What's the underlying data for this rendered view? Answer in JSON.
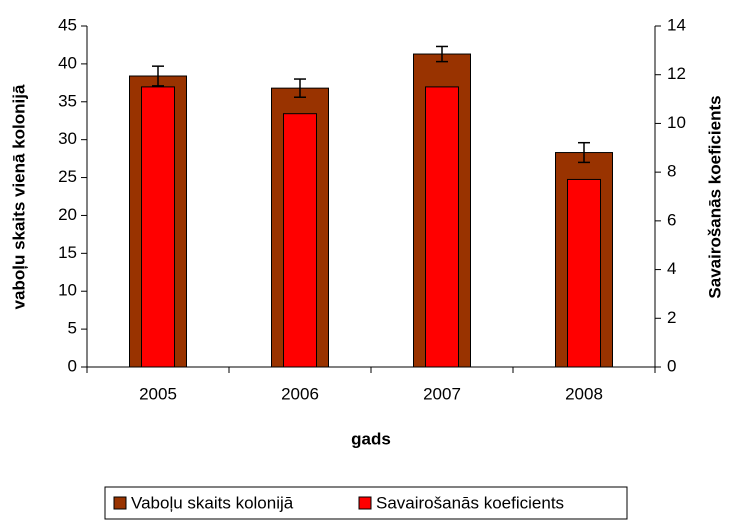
{
  "chart_data": {
    "type": "bar",
    "categories": [
      "2005",
      "2006",
      "2007",
      "2008"
    ],
    "xlabel": "gads",
    "ylabel": "vaboļu skaits vienā kolonijā",
    "y2label": "Savairošanās koeficients",
    "ylim": [
      0,
      45
    ],
    "yticks": [
      0,
      5,
      10,
      15,
      20,
      25,
      30,
      35,
      40,
      45
    ],
    "y2lim": [
      0,
      14
    ],
    "y2ticks": [
      0,
      2,
      4,
      6,
      8,
      10,
      12,
      14
    ],
    "series": [
      {
        "name": "Vaboļu skaits kolonijā",
        "color": "#993300",
        "values": [
          38.4,
          36.8,
          41.3,
          28.3
        ],
        "errors": [
          1.3,
          1.2,
          1.0,
          1.3
        ]
      },
      {
        "name": "Savairošanās koeficients",
        "color": "#ff0000",
        "axis": "y2",
        "values": [
          11.5,
          10.4,
          11.5,
          7.7
        ]
      }
    ],
    "legend": "bottom"
  }
}
